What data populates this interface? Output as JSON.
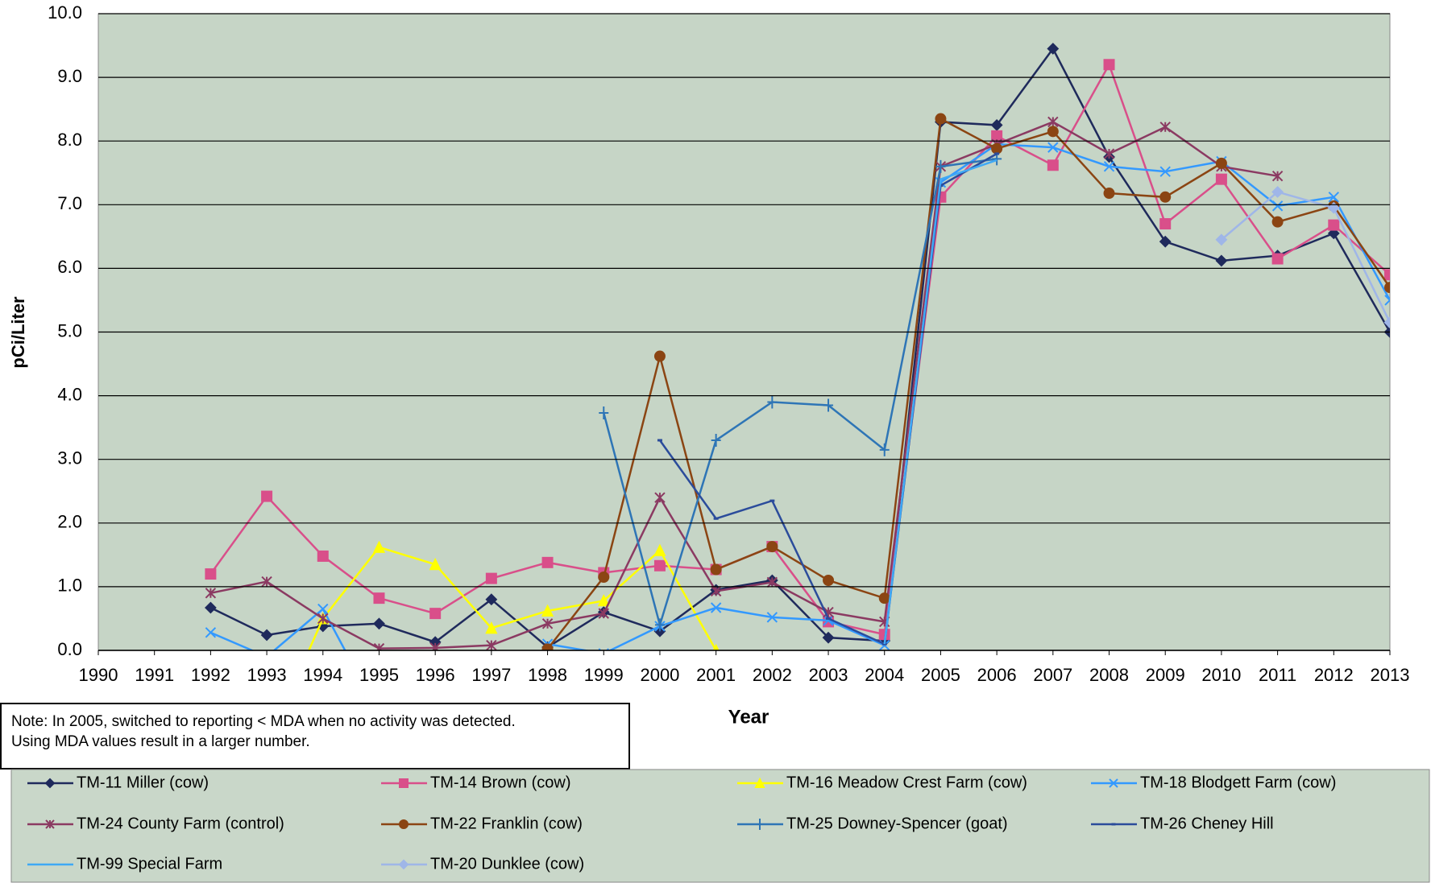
{
  "chart_data": {
    "type": "line",
    "x_label": "Year",
    "y_label": "pCi/Liter",
    "note": [
      "Note:  In 2005,  switched to reporting < MDA when no activity was detected.",
      "Using MDA values result in a larger number."
    ],
    "x": [
      1990,
      1991,
      1992,
      1993,
      1994,
      1995,
      1996,
      1997,
      1998,
      1999,
      2000,
      2001,
      2002,
      2003,
      2004,
      2005,
      2006,
      2007,
      2008,
      2009,
      2010,
      2011,
      2012,
      2013
    ],
    "xlim": [
      1990,
      2013
    ],
    "xticks": [
      1990,
      1991,
      1992,
      1993,
      1994,
      1995,
      1996,
      1997,
      1998,
      1999,
      2000,
      2001,
      2002,
      2003,
      2004,
      2005,
      2006,
      2007,
      2008,
      2009,
      2010,
      2011,
      2012,
      2013
    ],
    "ylim": [
      0,
      10
    ],
    "yticks": [
      {
        "value": 0,
        "label": "0.0"
      },
      {
        "value": 1,
        "label": "1.0"
      },
      {
        "value": 2,
        "label": "2.0"
      },
      {
        "value": 3,
        "label": "3.0"
      },
      {
        "value": 4,
        "label": "4.0"
      },
      {
        "value": 5,
        "label": "5.0"
      },
      {
        "value": 6,
        "label": "6.0"
      },
      {
        "value": 7,
        "label": "7.0"
      },
      {
        "value": 8,
        "label": "8.0"
      },
      {
        "value": 9,
        "label": "9.0"
      },
      {
        "value": 10,
        "label": "10.0"
      }
    ],
    "grid": true,
    "legend": "bottom",
    "series": [
      {
        "name": "TM-11 Miller (cow)",
        "color": "#1f2a5c",
        "marker": "diamond",
        "values": [
          null,
          null,
          0.67,
          0.24,
          0.38,
          0.42,
          0.13,
          0.8,
          0.05,
          0.6,
          0.3,
          0.95,
          1.1,
          0.2,
          0.15,
          8.3,
          8.25,
          9.45,
          7.75,
          6.42,
          6.12,
          6.2,
          6.55,
          5.0
        ]
      },
      {
        "name": "TM-14 Brown (cow)",
        "color": "#d94f8a",
        "marker": "square",
        "values": [
          null,
          null,
          1.2,
          2.42,
          1.48,
          0.82,
          0.58,
          1.13,
          1.38,
          1.22,
          1.33,
          1.27,
          1.63,
          0.45,
          0.25,
          7.12,
          8.08,
          7.62,
          9.2,
          6.7,
          7.4,
          6.15,
          6.68,
          5.9
        ]
      },
      {
        "name": "TM-16 Meadow Crest Farm (cow)",
        "color": "#ffff00",
        "marker": "triangle",
        "values": [
          null,
          null,
          null,
          -1.5,
          0.5,
          1.62,
          1.35,
          0.35,
          0.62,
          0.78,
          1.57,
          0.0,
          null,
          null,
          null,
          null,
          null,
          null,
          null,
          null,
          null,
          null,
          null,
          null
        ]
      },
      {
        "name": "TM-18 Blodgett Farm (cow)",
        "color": "#3399ff",
        "marker": "x",
        "values": [
          null,
          null,
          0.28,
          -0.1,
          0.65,
          -1.0,
          null,
          null,
          0.1,
          -0.05,
          0.38,
          0.67,
          0.52,
          0.47,
          0.08,
          7.35,
          7.95,
          7.9,
          7.6,
          7.52,
          7.68,
          6.98,
          7.12,
          5.5
        ]
      },
      {
        "name": "TM-24 County Farm (control)",
        "color": "#8b3a62",
        "marker": "asterisk",
        "values": [
          null,
          null,
          0.9,
          1.08,
          0.5,
          0.03,
          0.04,
          0.08,
          0.42,
          0.58,
          2.4,
          0.93,
          1.07,
          0.6,
          0.45,
          7.6,
          7.95,
          8.3,
          7.8,
          8.22,
          7.6,
          7.45,
          null,
          null
        ]
      },
      {
        "name": "TM-22 Franklin (cow)",
        "color": "#8b4513",
        "marker": "circle",
        "values": [
          null,
          null,
          null,
          null,
          null,
          null,
          null,
          null,
          0.02,
          1.15,
          4.62,
          1.27,
          1.63,
          1.1,
          0.82,
          8.35,
          7.88,
          8.15,
          7.18,
          7.12,
          7.65,
          6.73,
          6.98,
          5.7
        ]
      },
      {
        "name": "TM-25 Downey-Spencer (goat)",
        "color": "#2e75b6",
        "marker": "plus",
        "values": [
          null,
          null,
          null,
          null,
          null,
          null,
          null,
          null,
          null,
          3.73,
          0.4,
          3.3,
          3.9,
          3.85,
          3.15,
          7.6,
          7.72,
          null,
          null,
          null,
          null,
          null,
          null,
          null
        ]
      },
      {
        "name": "TM-26 Cheney Hill",
        "color": "#2b4c9b",
        "marker": "dash",
        "values": [
          null,
          null,
          null,
          null,
          null,
          null,
          null,
          null,
          null,
          null,
          3.3,
          2.07,
          2.35,
          0.5,
          0.1,
          7.3,
          7.8,
          null,
          null,
          null,
          null,
          null,
          null,
          null
        ]
      },
      {
        "name": "TM-99 Special Farm",
        "color": "#3fa9f5",
        "marker": "none",
        "values": [
          null,
          null,
          null,
          null,
          null,
          null,
          null,
          null,
          null,
          null,
          null,
          null,
          null,
          null,
          0.1,
          7.4,
          7.7,
          null,
          null,
          null,
          null,
          null,
          null,
          null
        ]
      },
      {
        "name": "TM-20 Dunklee (cow)",
        "color": "#9fb6e8",
        "marker": "diamond",
        "values": [
          null,
          null,
          null,
          null,
          null,
          null,
          null,
          null,
          null,
          null,
          null,
          null,
          null,
          null,
          null,
          null,
          null,
          null,
          null,
          null,
          6.45,
          7.2,
          6.95,
          5.15
        ]
      }
    ]
  }
}
